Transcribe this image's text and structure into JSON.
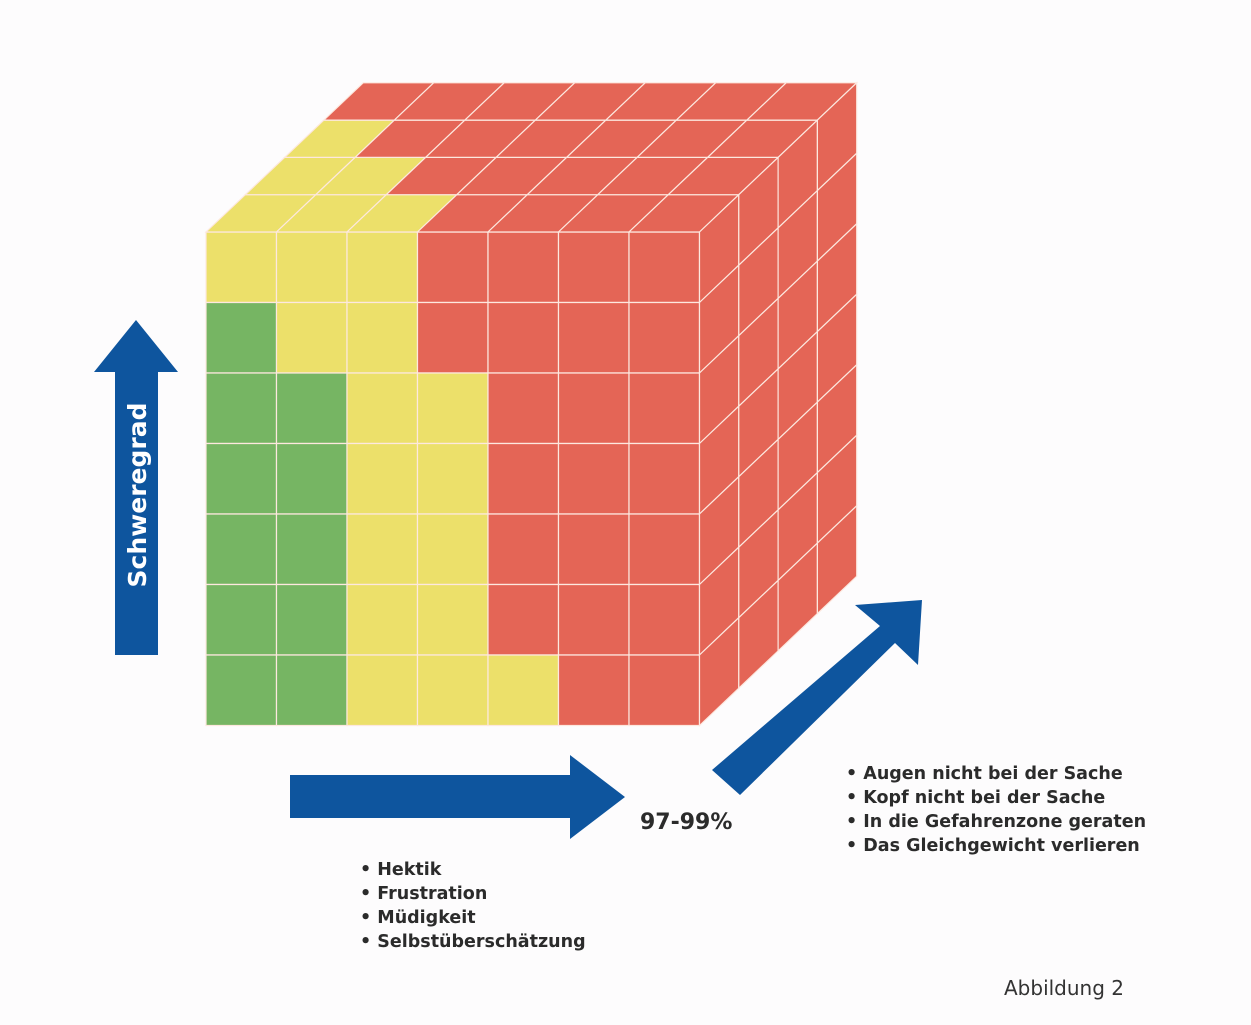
{
  "diagram": {
    "axis_vertical_label": "Schweregrad",
    "depth_percent": "97-99%",
    "list_horizontal": [
      "Hektik",
      "Frustration",
      "Müdigkeit",
      "Selbstüberschätzung"
    ],
    "list_depth": [
      "Augen nicht bei der Sache",
      "Kopf nicht bei der Sache",
      "In die Gefahrenzone geraten",
      "Das Gleichgewicht verlieren"
    ],
    "caption": "Abbildung 2",
    "cube": {
      "columns": 7,
      "rows": 7,
      "depth": 4,
      "front_face": [
        [
          "yellow",
          "yellow",
          "yellow",
          "red",
          "red",
          "red",
          "red"
        ],
        [
          "green",
          "yellow",
          "yellow",
          "red",
          "red",
          "red",
          "red"
        ],
        [
          "green",
          "green",
          "yellow",
          "yellow",
          "red",
          "red",
          "red"
        ],
        [
          "green",
          "green",
          "yellow",
          "yellow",
          "red",
          "red",
          "red"
        ],
        [
          "green",
          "green",
          "yellow",
          "yellow",
          "red",
          "red",
          "red"
        ],
        [
          "green",
          "green",
          "yellow",
          "yellow",
          "red",
          "red",
          "red"
        ],
        [
          "green",
          "green",
          "yellow",
          "yellow",
          "yellow",
          "red",
          "red"
        ]
      ],
      "top_face_yellow_cells": [
        [
          0,
          0
        ],
        [
          0,
          1
        ],
        [
          0,
          2
        ],
        [
          1,
          0
        ],
        [
          1,
          1
        ],
        [
          2,
          0
        ]
      ]
    },
    "colors": {
      "green": "#76b563",
      "yellow": "#ece06a",
      "red": "#e46556",
      "arrow": "#0e559e",
      "grid_line": "#fde8df"
    }
  }
}
